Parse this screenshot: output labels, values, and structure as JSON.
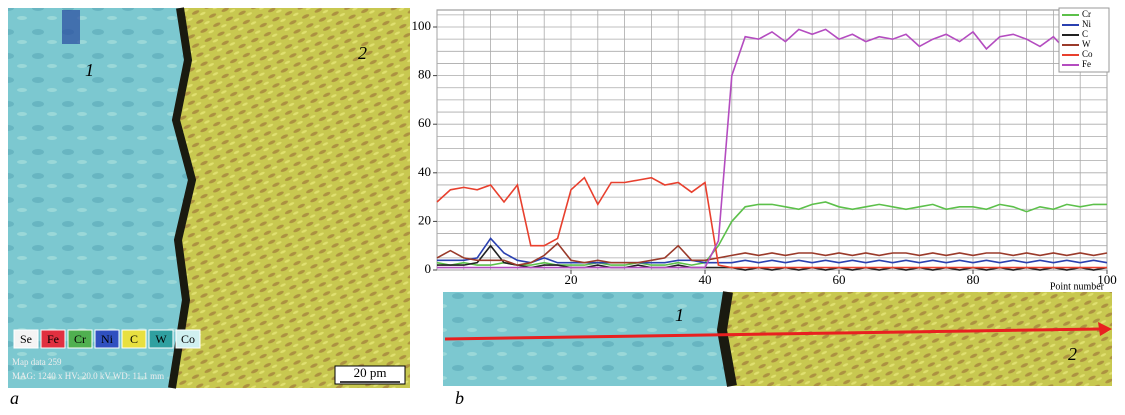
{
  "chart_data": {
    "type": "line",
    "xlabel": "Point number",
    "x": [
      0,
      2,
      4,
      6,
      8,
      10,
      12,
      14,
      16,
      18,
      20,
      22,
      24,
      26,
      28,
      30,
      32,
      34,
      36,
      38,
      40,
      42,
      44,
      46,
      48,
      50,
      52,
      54,
      56,
      58,
      60,
      62,
      64,
      66,
      68,
      70,
      72,
      74,
      76,
      78,
      80,
      82,
      84,
      86,
      88,
      90,
      92,
      94,
      96,
      98,
      100
    ],
    "xlim": [
      0,
      100
    ],
    "xticks": [
      20,
      40,
      60,
      80,
      100
    ],
    "ylim": [
      0,
      107
    ],
    "yticks": [
      0,
      20,
      40,
      60,
      80,
      100
    ],
    "x_minor_ticks": [
      0,
      4,
      8,
      12,
      16,
      20,
      24,
      28,
      32,
      36,
      40,
      44,
      48,
      52,
      56,
      60,
      64,
      68,
      72,
      76,
      80,
      84,
      88,
      92,
      96,
      100
    ],
    "y_minor_ticks": [
      0,
      5,
      10,
      15,
      20,
      25,
      30,
      35,
      40,
      45,
      50,
      55,
      60,
      65,
      70,
      75,
      80,
      85,
      90,
      95,
      100,
      105
    ],
    "grid": true,
    "legend": "upper right",
    "series": [
      {
        "name": "Cr",
        "color": "#5cc04a",
        "values": [
          3,
          2,
          3,
          2,
          2,
          3,
          2,
          2,
          3,
          2,
          2,
          2,
          3,
          2,
          2,
          3,
          2,
          2,
          3,
          2,
          3,
          10,
          20,
          26,
          27,
          27,
          26,
          25,
          27,
          28,
          26,
          25,
          26,
          27,
          26,
          25,
          26,
          27,
          25,
          26,
          26,
          25,
          27,
          26,
          24,
          26,
          25,
          27,
          26,
          27,
          27
        ]
      },
      {
        "name": "Ni",
        "color": "#2a40b0",
        "values": [
          4,
          4,
          4,
          5,
          13,
          7,
          4,
          3,
          5,
          3,
          3,
          3,
          3,
          3,
          3,
          3,
          3,
          3,
          4,
          4,
          3,
          3,
          3,
          4,
          3,
          4,
          3,
          4,
          3,
          4,
          3,
          4,
          3,
          4,
          3,
          4,
          3,
          4,
          3,
          4,
          3,
          4,
          3,
          4,
          3,
          4,
          3,
          4,
          3,
          4,
          3
        ]
      },
      {
        "name": "C",
        "color": "#222222",
        "values": [
          2,
          2,
          2,
          3,
          10,
          3,
          2,
          1,
          2,
          2,
          1,
          1,
          2,
          1,
          1,
          2,
          1,
          1,
          2,
          1,
          1,
          1,
          1,
          0,
          1,
          0,
          1,
          0,
          1,
          0,
          1,
          0,
          1,
          0,
          1,
          0,
          1,
          0,
          1,
          0,
          1,
          0,
          1,
          0,
          1,
          0,
          1,
          0,
          1,
          0,
          1
        ]
      },
      {
        "name": "W",
        "color": "#9a3a2a",
        "values": [
          5,
          8,
          5,
          4,
          4,
          4,
          2,
          3,
          6,
          11,
          4,
          3,
          4,
          3,
          3,
          3,
          4,
          5,
          10,
          4,
          4,
          5,
          6,
          7,
          6,
          7,
          6,
          7,
          7,
          6,
          7,
          6,
          7,
          6,
          7,
          7,
          6,
          7,
          6,
          7,
          6,
          7,
          7,
          6,
          7,
          6,
          7,
          6,
          7,
          6,
          7
        ]
      },
      {
        "name": "Co",
        "color": "#e8402e",
        "values": [
          28,
          33,
          34,
          33,
          35,
          28,
          35,
          10,
          10,
          13,
          33,
          38,
          27,
          36,
          36,
          37,
          38,
          35,
          36,
          32,
          36,
          2,
          1,
          1,
          1,
          1,
          1,
          1,
          1,
          1,
          1,
          1,
          1,
          1,
          1,
          1,
          1,
          1,
          1,
          1,
          1,
          1,
          1,
          1,
          1,
          1,
          1,
          1,
          1,
          1,
          1
        ]
      },
      {
        "name": "Fe",
        "color": "#b44cc0",
        "values": [
          1,
          1,
          1,
          1,
          1,
          1,
          1,
          1,
          1,
          1,
          1,
          1,
          1,
          1,
          1,
          1,
          1,
          1,
          1,
          1,
          1,
          12,
          80,
          96,
          95,
          98,
          94,
          99,
          97,
          99,
          95,
          97,
          94,
          96,
          95,
          97,
          92,
          95,
          97,
          94,
          98,
          91,
          96,
          97,
          95,
          92,
          96,
          90,
          95,
          92,
          94
        ]
      }
    ]
  },
  "panel_a": {
    "label": "a",
    "region_labels": [
      "1",
      "2"
    ],
    "legend": [
      "Se",
      "Fe",
      "Cr",
      "Ni",
      "C",
      "W",
      "Co"
    ],
    "legend_colors": [
      "#f4f4f4",
      "#e03040",
      "#50b050",
      "#3050c0",
      "#e8e040",
      "#30a0a0",
      "#d0f0f0"
    ],
    "scale_bar": "20 pm",
    "info": [
      "Map data 259",
      "MAG: 1240 x  HV: 20.0 kV  WD: 11.1 mm"
    ]
  },
  "panel_b": {
    "label": "b",
    "region_labels": [
      "1",
      "2"
    ]
  }
}
